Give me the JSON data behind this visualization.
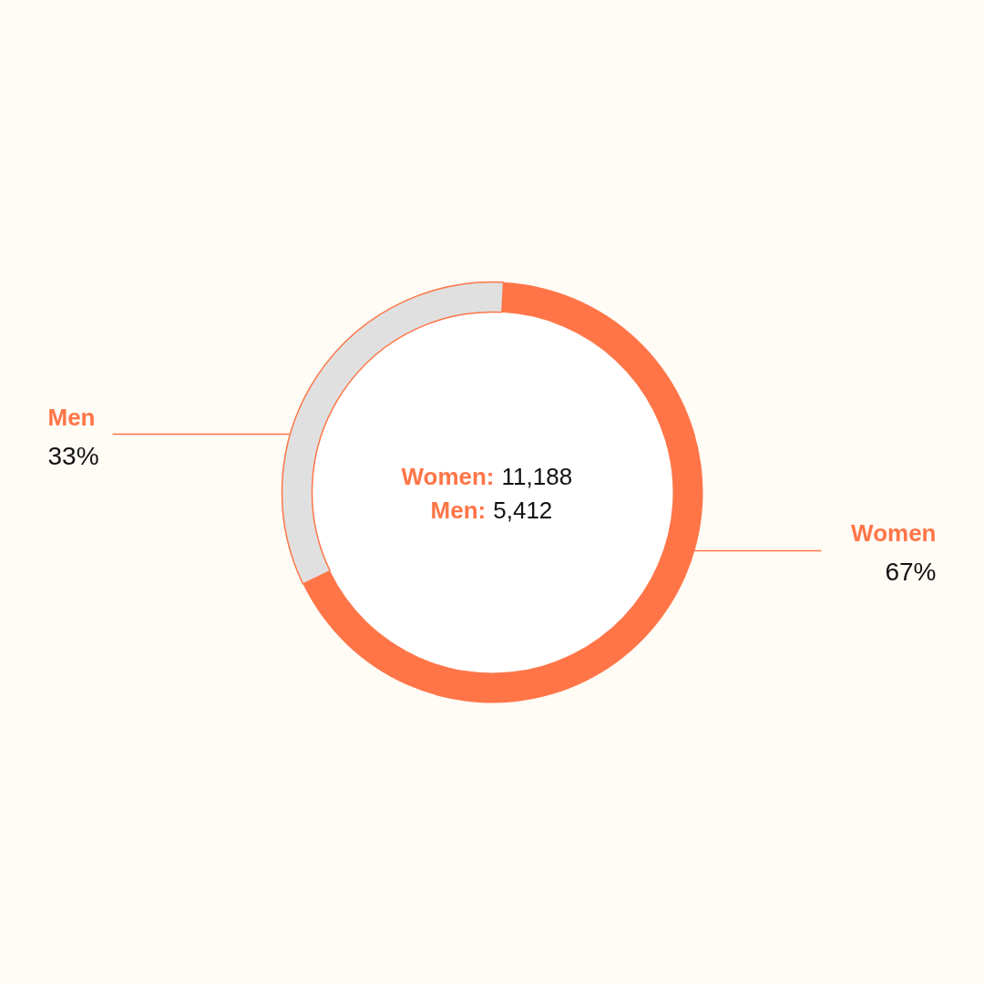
{
  "chart_data": {
    "type": "donut",
    "categories": [
      "Women",
      "Men"
    ],
    "values": [
      67,
      33
    ],
    "colors": [
      "#ff7547",
      "#e0e0e0"
    ],
    "value_labels": [
      "67%",
      "33%"
    ],
    "annotations": [
      "Women: 11,188",
      "Men: 5,412"
    ]
  }
}
